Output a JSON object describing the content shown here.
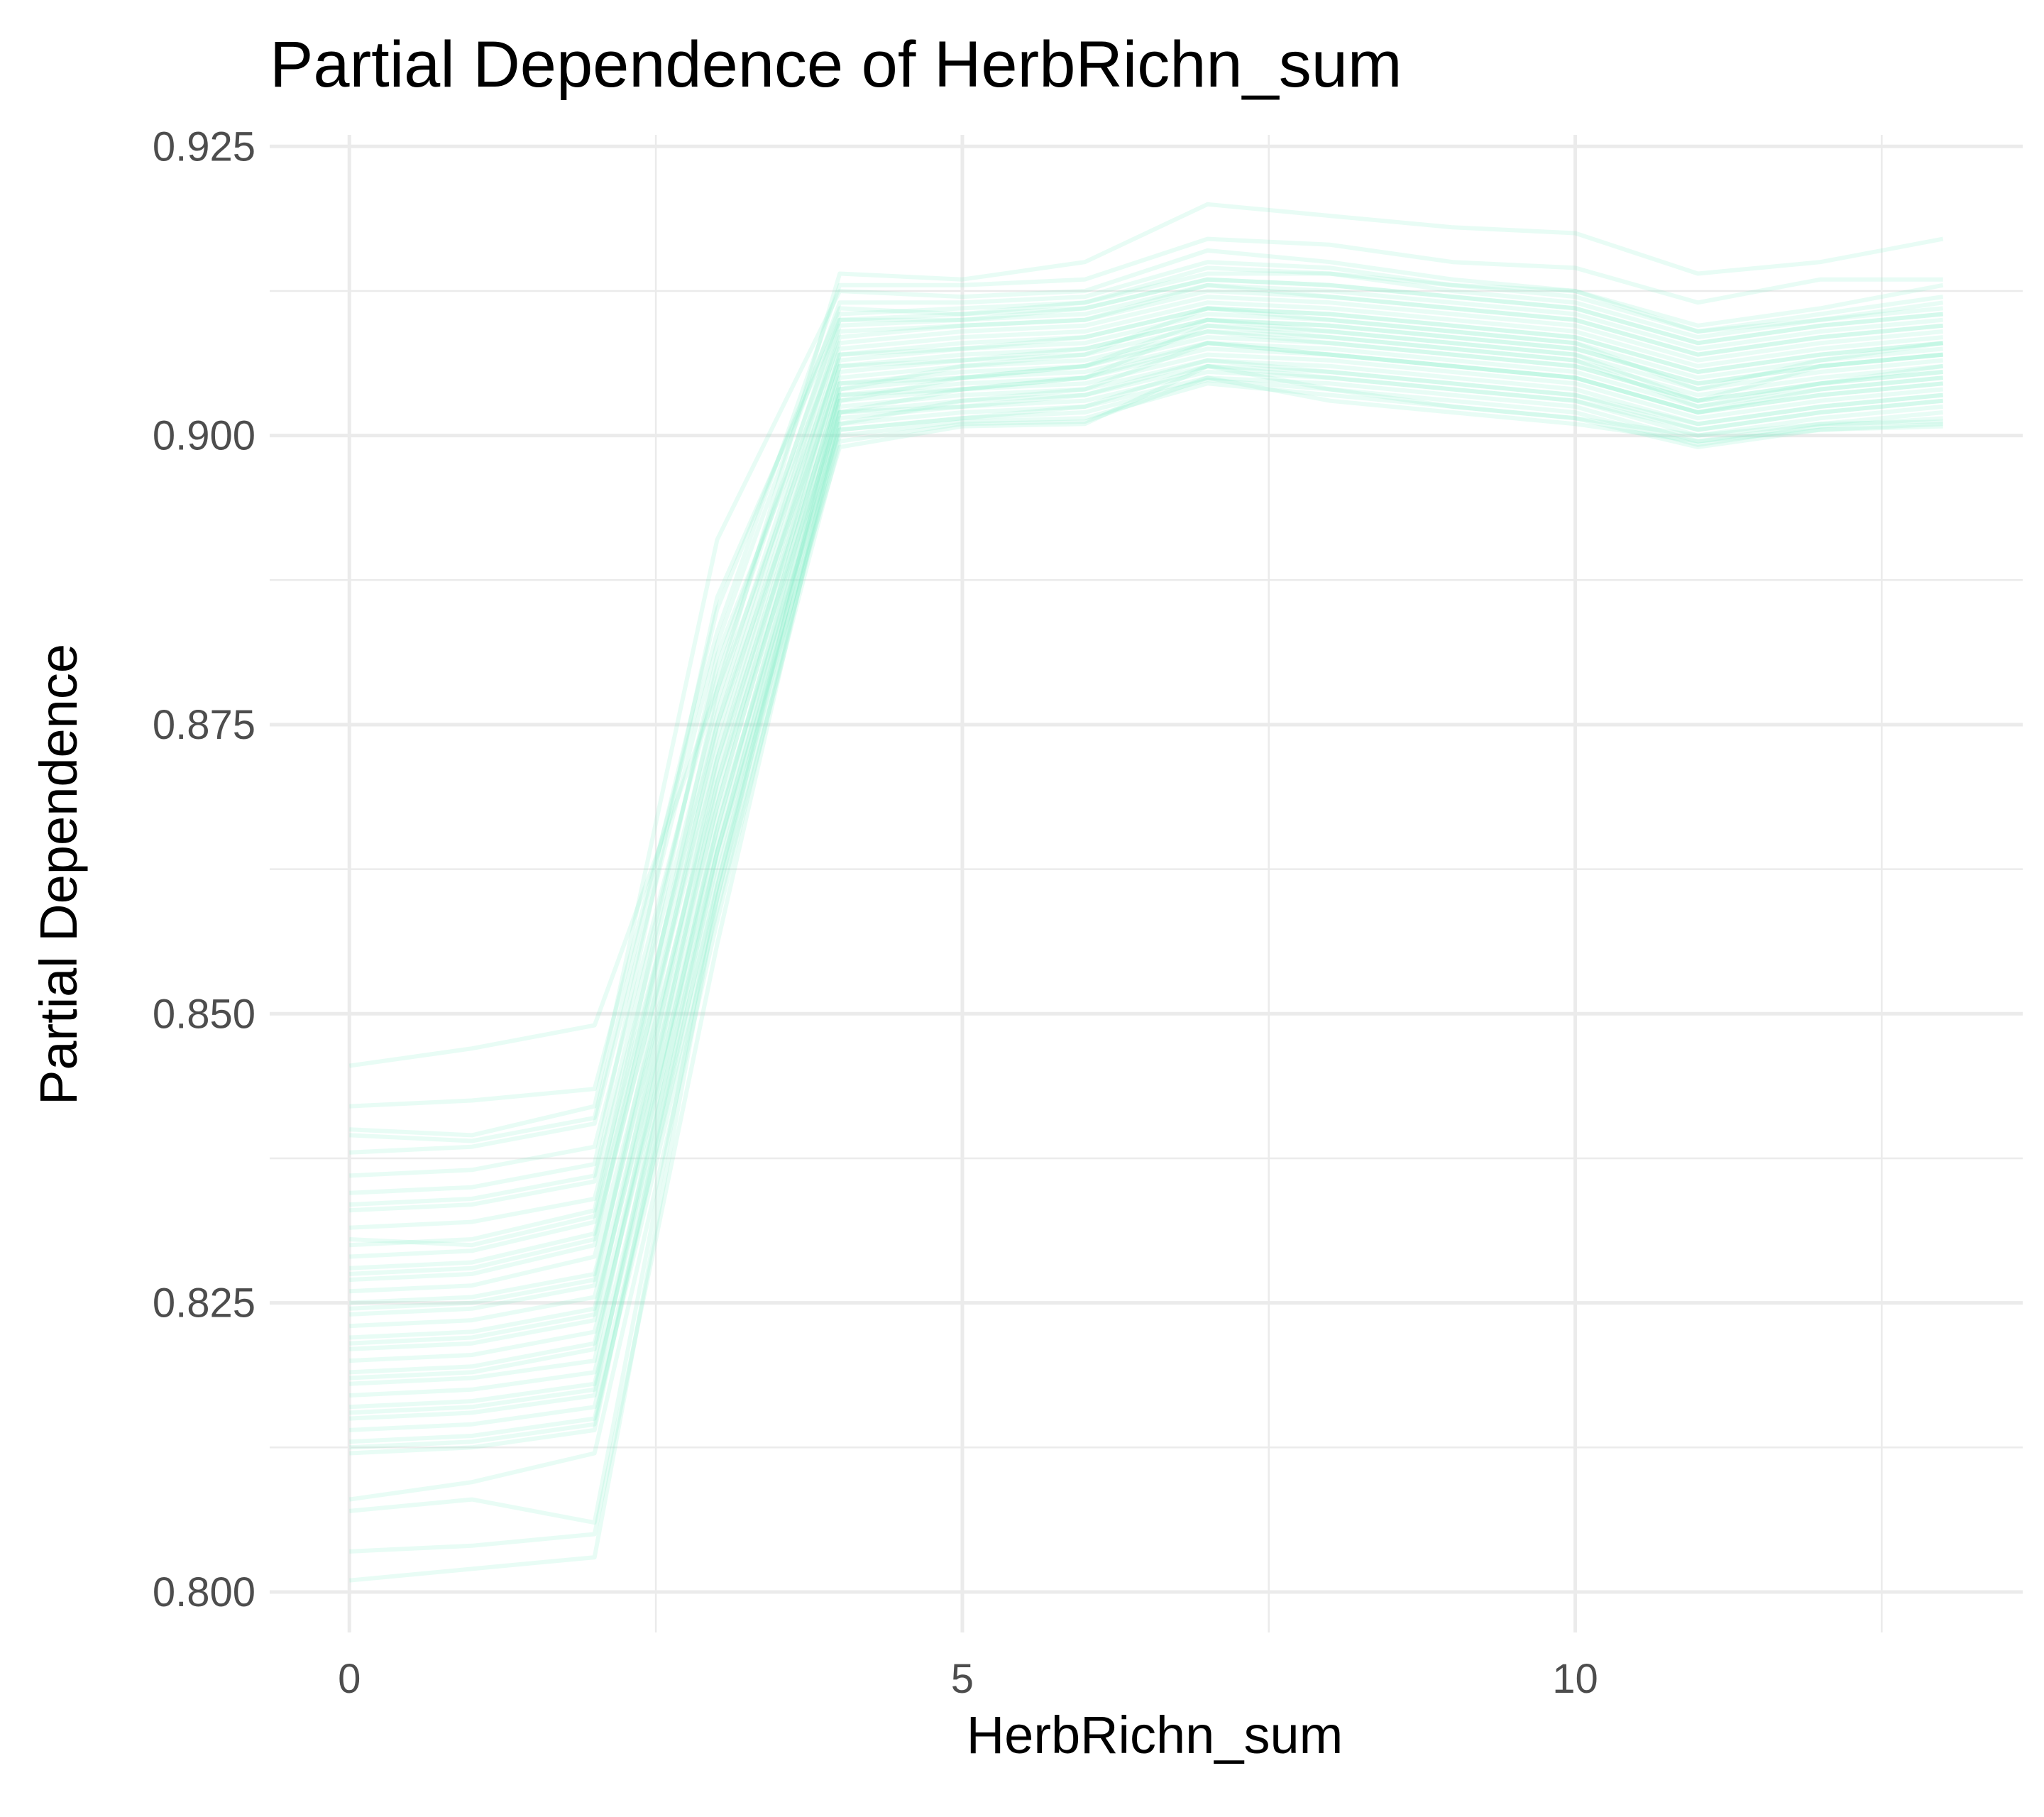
{
  "chart_data": {
    "type": "line",
    "title": "Partial Dependence of HerbRichn_sum",
    "xlabel": "HerbRichn_sum",
    "ylabel": "Partial Dependence",
    "x": [
      0,
      1,
      2,
      3,
      4,
      5,
      6,
      7,
      8,
      9,
      10,
      11,
      12,
      13
    ],
    "xlim": [
      -0.65,
      13.65
    ],
    "ylim": [
      0.7965,
      0.926
    ],
    "x_ticks": [
      0,
      5,
      10
    ],
    "x_tick_labels": [
      "0",
      "5",
      "10"
    ],
    "y_ticks": [
      0.8,
      0.825,
      0.85,
      0.875,
      0.9,
      0.925
    ],
    "y_tick_labels": [
      "0.800",
      "0.825",
      "0.850",
      "0.875",
      "0.900",
      "0.925"
    ],
    "line_color": "#7ff0c8",
    "line_opacity": 0.18,
    "grid": true,
    "legend": "none",
    "series": [
      {
        "values": [
          0.8455,
          0.847,
          0.849,
          0.878,
          0.914,
          0.9135,
          0.915,
          0.92,
          0.919,
          0.918,
          0.9175,
          0.914,
          0.915,
          0.917
        ]
      },
      {
        "values": [
          0.842,
          0.8425,
          0.8435,
          0.883,
          0.913,
          0.913,
          0.9135,
          0.917,
          0.9165,
          0.915,
          0.9145,
          0.9115,
          0.9135,
          0.9135
        ]
      },
      {
        "values": [
          0.84,
          0.8395,
          0.842,
          0.891,
          0.9125,
          0.912,
          0.9125,
          0.916,
          0.915,
          0.9135,
          0.9125,
          0.9095,
          0.911,
          0.913
        ]
      },
      {
        "values": [
          0.838,
          0.8385,
          0.8405,
          0.882,
          0.9115,
          0.9115,
          0.912,
          0.915,
          0.9145,
          0.913,
          0.9125,
          0.909,
          0.9105,
          0.912
        ]
      },
      {
        "values": [
          0.836,
          0.8365,
          0.8385,
          0.879,
          0.9105,
          0.911,
          0.9115,
          0.914,
          0.914,
          0.9125,
          0.9115,
          0.9085,
          0.91,
          0.911
        ]
      },
      {
        "values": [
          0.8345,
          0.835,
          0.837,
          0.886,
          0.91,
          0.9105,
          0.911,
          0.9135,
          0.913,
          0.912,
          0.911,
          0.908,
          0.9095,
          0.9105
        ]
      },
      {
        "values": [
          0.833,
          0.8335,
          0.8355,
          0.877,
          0.9095,
          0.91,
          0.9105,
          0.913,
          0.9125,
          0.9115,
          0.9105,
          0.9075,
          0.909,
          0.91
        ]
      },
      {
        "values": [
          0.8315,
          0.832,
          0.834,
          0.875,
          0.9085,
          0.9095,
          0.91,
          0.9125,
          0.912,
          0.911,
          0.91,
          0.907,
          0.9085,
          0.9095
        ]
      },
      {
        "values": [
          0.83,
          0.8305,
          0.833,
          0.881,
          0.908,
          0.909,
          0.9095,
          0.912,
          0.9115,
          0.9105,
          0.9095,
          0.9065,
          0.908,
          0.909
        ]
      },
      {
        "values": [
          0.829,
          0.8295,
          0.832,
          0.874,
          0.9075,
          0.9085,
          0.909,
          0.9115,
          0.911,
          0.91,
          0.909,
          0.906,
          0.9075,
          0.9085
        ]
      },
      {
        "values": [
          0.828,
          0.8285,
          0.831,
          0.872,
          0.907,
          0.908,
          0.9085,
          0.911,
          0.9105,
          0.9095,
          0.9085,
          0.9055,
          0.907,
          0.908
        ]
      },
      {
        "values": [
          0.827,
          0.8275,
          0.83,
          0.878,
          0.9065,
          0.9075,
          0.908,
          0.9105,
          0.91,
          0.909,
          0.908,
          0.905,
          0.9065,
          0.9075
        ]
      },
      {
        "values": [
          0.826,
          0.8265,
          0.829,
          0.87,
          0.906,
          0.907,
          0.9075,
          0.91,
          0.9095,
          0.9085,
          0.9075,
          0.9045,
          0.906,
          0.907
        ]
      },
      {
        "values": [
          0.825,
          0.8255,
          0.8275,
          0.869,
          0.9055,
          0.9065,
          0.907,
          0.9095,
          0.909,
          0.908,
          0.907,
          0.904,
          0.9055,
          0.9065
        ]
      },
      {
        "values": [
          0.824,
          0.8245,
          0.8265,
          0.875,
          0.905,
          0.906,
          0.9065,
          0.909,
          0.9085,
          0.9075,
          0.9065,
          0.9035,
          0.905,
          0.906
        ]
      },
      {
        "values": [
          0.823,
          0.8235,
          0.8255,
          0.868,
          0.9045,
          0.9055,
          0.906,
          0.9085,
          0.908,
          0.907,
          0.906,
          0.903,
          0.9045,
          0.9055
        ]
      },
      {
        "values": [
          0.822,
          0.8225,
          0.8245,
          0.866,
          0.904,
          0.905,
          0.9055,
          0.908,
          0.9075,
          0.9065,
          0.9055,
          0.9025,
          0.904,
          0.905
        ]
      },
      {
        "values": [
          0.821,
          0.8215,
          0.8235,
          0.872,
          0.9035,
          0.9045,
          0.905,
          0.9075,
          0.907,
          0.906,
          0.905,
          0.902,
          0.9035,
          0.9045
        ]
      },
      {
        "values": [
          0.82,
          0.8205,
          0.8225,
          0.865,
          0.903,
          0.904,
          0.9045,
          0.907,
          0.9065,
          0.9055,
          0.9045,
          0.9015,
          0.903,
          0.904
        ]
      },
      {
        "values": [
          0.819,
          0.8195,
          0.8215,
          0.864,
          0.9025,
          0.9035,
          0.904,
          0.9065,
          0.906,
          0.905,
          0.904,
          0.901,
          0.9025,
          0.9035
        ]
      },
      {
        "values": [
          0.818,
          0.8185,
          0.82,
          0.87,
          0.902,
          0.903,
          0.9035,
          0.906,
          0.9055,
          0.9045,
          0.9035,
          0.9005,
          0.902,
          0.903
        ]
      },
      {
        "values": [
          0.817,
          0.8175,
          0.819,
          0.863,
          0.9015,
          0.9025,
          0.903,
          0.9055,
          0.905,
          0.904,
          0.903,
          0.9,
          0.9015,
          0.9025
        ]
      },
      {
        "values": [
          0.816,
          0.8165,
          0.818,
          0.861,
          0.901,
          0.902,
          0.9025,
          0.905,
          0.9045,
          0.9035,
          0.9025,
          0.8995,
          0.901,
          0.902
        ]
      },
      {
        "values": [
          0.815,
          0.8155,
          0.817,
          0.867,
          0.9005,
          0.9015,
          0.902,
          0.9048,
          0.904,
          0.903,
          0.902,
          0.8992,
          0.9008,
          0.9015
        ]
      },
      {
        "values": [
          0.814,
          0.8145,
          0.816,
          0.86,
          0.9,
          0.9012,
          0.9015,
          0.9045,
          0.9035,
          0.9025,
          0.9015,
          0.899,
          0.9005,
          0.901
        ]
      },
      {
        "values": [
          0.813,
          0.8135,
          0.815,
          0.859,
          0.8995,
          0.901,
          0.9012,
          0.905,
          0.903,
          0.902,
          0.901,
          0.8995,
          0.9005,
          0.9008
        ]
      },
      {
        "values": [
          0.812,
          0.8125,
          0.814,
          0.864,
          0.899,
          0.9008,
          0.901,
          0.906,
          0.904,
          0.9025,
          0.9015,
          0.9,
          0.901,
          0.9012
        ]
      },
      {
        "values": [
          0.808,
          0.8095,
          0.812,
          0.858,
          0.901,
          0.903,
          0.904,
          0.908,
          0.907,
          0.906,
          0.905,
          0.902,
          0.904,
          0.905
        ]
      },
      {
        "values": [
          0.807,
          0.808,
          0.806,
          0.861,
          0.903,
          0.905,
          0.906,
          0.91,
          0.909,
          0.908,
          0.907,
          0.903,
          0.906,
          0.907
        ]
      },
      {
        "values": [
          0.8035,
          0.804,
          0.805,
          0.856,
          0.902,
          0.904,
          0.905,
          0.9095,
          0.9085,
          0.9075,
          0.9065,
          0.9025,
          0.9045,
          0.906
        ]
      },
      {
        "values": [
          0.801,
          0.802,
          0.803,
          0.86,
          0.904,
          0.906,
          0.907,
          0.911,
          0.91,
          0.909,
          0.908,
          0.904,
          0.9065,
          0.908
        ]
      },
      {
        "values": [
          0.8395,
          0.839,
          0.841,
          0.885,
          0.911,
          0.9105,
          0.9115,
          0.9145,
          0.914,
          0.913,
          0.912,
          0.909,
          0.91,
          0.9115
        ]
      },
      {
        "values": [
          0.8305,
          0.83,
          0.8325,
          0.876,
          0.909,
          0.9095,
          0.91,
          0.913,
          0.912,
          0.911,
          0.91,
          0.907,
          0.9085,
          0.9095
        ]
      },
      {
        "values": [
          0.8245,
          0.825,
          0.827,
          0.871,
          0.906,
          0.9065,
          0.9075,
          0.91,
          0.9095,
          0.9085,
          0.9075,
          0.9045,
          0.906,
          0.907
        ]
      },
      {
        "values": [
          0.8185,
          0.819,
          0.821,
          0.866,
          0.9035,
          0.904,
          0.905,
          0.908,
          0.907,
          0.906,
          0.905,
          0.902,
          0.9035,
          0.9045
        ]
      },
      {
        "values": [
          0.8125,
          0.813,
          0.8145,
          0.862,
          0.9005,
          0.9015,
          0.9025,
          0.906,
          0.905,
          0.904,
          0.903,
          0.9005,
          0.902,
          0.903
        ]
      },
      {
        "values": [
          0.8335,
          0.834,
          0.836,
          0.88,
          0.91,
          0.91,
          0.911,
          0.9135,
          0.913,
          0.912,
          0.911,
          0.908,
          0.9095,
          0.9105
        ]
      },
      {
        "values": [
          0.8275,
          0.828,
          0.8305,
          0.873,
          0.907,
          0.9075,
          0.9085,
          0.911,
          0.9105,
          0.9095,
          0.9085,
          0.9055,
          0.907,
          0.908
        ]
      },
      {
        "values": [
          0.8215,
          0.822,
          0.824,
          0.868,
          0.9045,
          0.905,
          0.906,
          0.909,
          0.908,
          0.907,
          0.906,
          0.903,
          0.9045,
          0.9055
        ]
      },
      {
        "values": [
          0.8155,
          0.816,
          0.8175,
          0.864,
          0.902,
          0.9025,
          0.9035,
          0.9065,
          0.9055,
          0.9045,
          0.9035,
          0.901,
          0.9025,
          0.9035
        ]
      }
    ]
  }
}
